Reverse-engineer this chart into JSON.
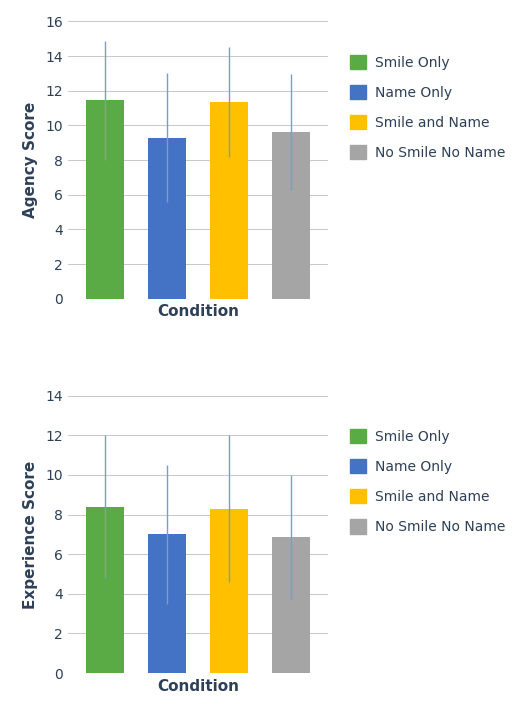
{
  "agency": {
    "values": [
      11.45,
      9.3,
      11.35,
      9.6
    ],
    "errors": [
      3.45,
      3.7,
      3.15,
      3.35
    ],
    "ylabel": "Agency Score",
    "ylim": [
      0,
      16
    ],
    "yticks": [
      0,
      2,
      4,
      6,
      8,
      10,
      12,
      14,
      16
    ]
  },
  "experience": {
    "values": [
      8.4,
      7.0,
      8.3,
      6.85
    ],
    "errors": [
      3.6,
      3.5,
      3.7,
      3.15
    ],
    "ylabel": "Experience Score",
    "ylim": [
      0,
      14
    ],
    "yticks": [
      0,
      2,
      4,
      6,
      8,
      10,
      12,
      14
    ]
  },
  "categories": [
    "Smile Only",
    "Name Only",
    "Smile and Name",
    "No Smile No Name"
  ],
  "colors": [
    "#5aaa46",
    "#4472c4",
    "#ffc000",
    "#a5a5a5"
  ],
  "xlabel": "Condition",
  "bar_width": 0.62,
  "legend_labels": [
    "Smile Only",
    "Name Only",
    "Smile and Name",
    "No Smile No Name"
  ],
  "error_color": "#7f9dbf",
  "axis_label_fontsize": 11,
  "tick_fontsize": 10,
  "legend_fontsize": 10,
  "legend_text_color": "#2e4057",
  "axis_label_color": "#2e4057",
  "tick_color": "#2e4057",
  "background_color": "#ffffff",
  "grid_color": "#c8c8c8"
}
